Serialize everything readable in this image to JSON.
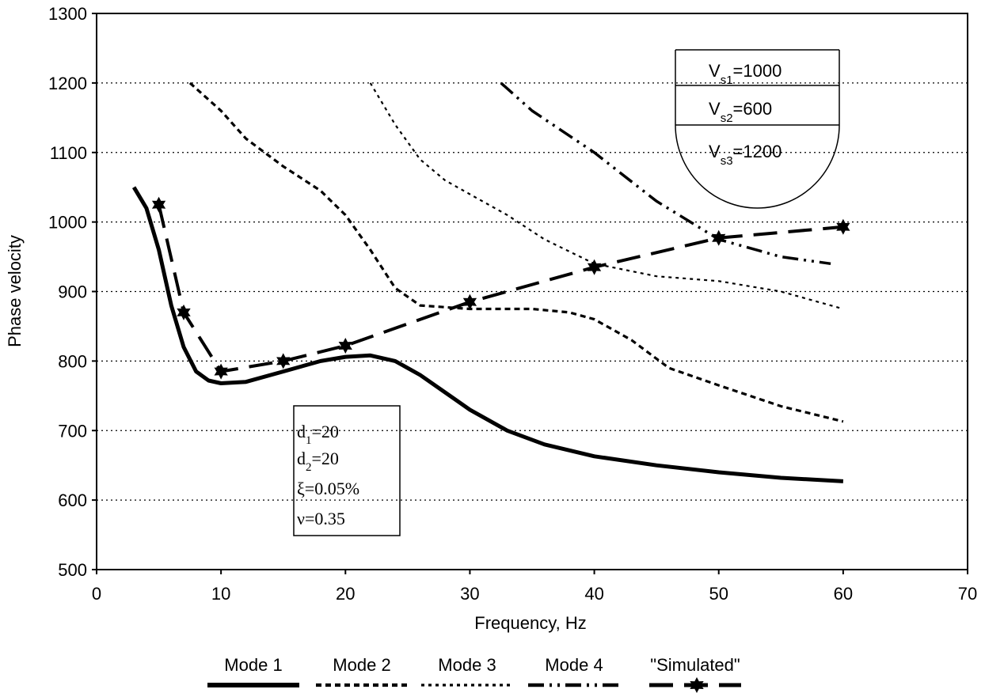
{
  "chart_data": {
    "type": "line",
    "x_label": "Frequency, Hz",
    "y_label": "Phase velocity",
    "xlim": [
      0,
      70
    ],
    "ylim": [
      500,
      1300
    ],
    "xticks": [
      0,
      10,
      20,
      30,
      40,
      50,
      60,
      70
    ],
    "yticks": [
      500,
      600,
      700,
      800,
      900,
      1000,
      1100,
      1200,
      1300
    ],
    "grid": true,
    "series": [
      {
        "name": "Mode 1",
        "color": "#000000",
        "x": [
          3,
          4,
          5,
          6,
          7,
          8,
          9,
          10,
          12,
          15,
          18,
          20,
          22,
          24,
          26,
          28,
          30,
          33,
          36,
          40,
          45,
          50,
          55,
          60
        ],
        "values": [
          1050,
          1020,
          960,
          880,
          820,
          785,
          772,
          768,
          770,
          785,
          800,
          806,
          808,
          800,
          780,
          755,
          730,
          700,
          680,
          663,
          650,
          640,
          632,
          627
        ]
      },
      {
        "name": "Mode 2",
        "color": "#000000",
        "x": [
          7.5,
          10,
          12,
          15,
          18,
          20,
          22,
          24,
          26,
          30,
          35,
          38,
          40,
          43,
          46,
          50,
          55,
          60
        ],
        "values": [
          1200,
          1160,
          1120,
          1080,
          1045,
          1010,
          960,
          905,
          880,
          875,
          875,
          870,
          860,
          830,
          790,
          765,
          735,
          713
        ]
      },
      {
        "name": "Mode 3",
        "color": "#000000",
        "x": [
          22,
          24,
          26,
          28,
          30,
          33,
          36,
          40,
          45,
          50,
          55,
          60
        ],
        "values": [
          1200,
          1140,
          1090,
          1060,
          1040,
          1010,
          975,
          940,
          922,
          915,
          900,
          875
        ]
      },
      {
        "name": "Mode 4",
        "color": "#000000",
        "x": [
          32.5,
          35,
          40,
          45,
          50,
          55,
          59
        ],
        "values": [
          1200,
          1160,
          1100,
          1030,
          975,
          950,
          940
        ]
      },
      {
        "name": "\"Simulated\"",
        "color": "#000000",
        "x": [
          5,
          7,
          10,
          15,
          20,
          30,
          40,
          50,
          60
        ],
        "values": [
          1025,
          870,
          785,
          800,
          822,
          885,
          935,
          977,
          993
        ]
      }
    ],
    "layer_labels": [
      [
        "V",
        "s1",
        "=1000"
      ],
      [
        "V",
        "s2",
        "=600"
      ],
      [
        "V",
        "s3",
        "=1200"
      ]
    ],
    "parameters": [
      [
        "d",
        "1",
        "=20"
      ],
      [
        "d",
        "2",
        "=20"
      ],
      [
        "ξ=0.05%"
      ],
      [
        "ν=0.35"
      ]
    ]
  }
}
